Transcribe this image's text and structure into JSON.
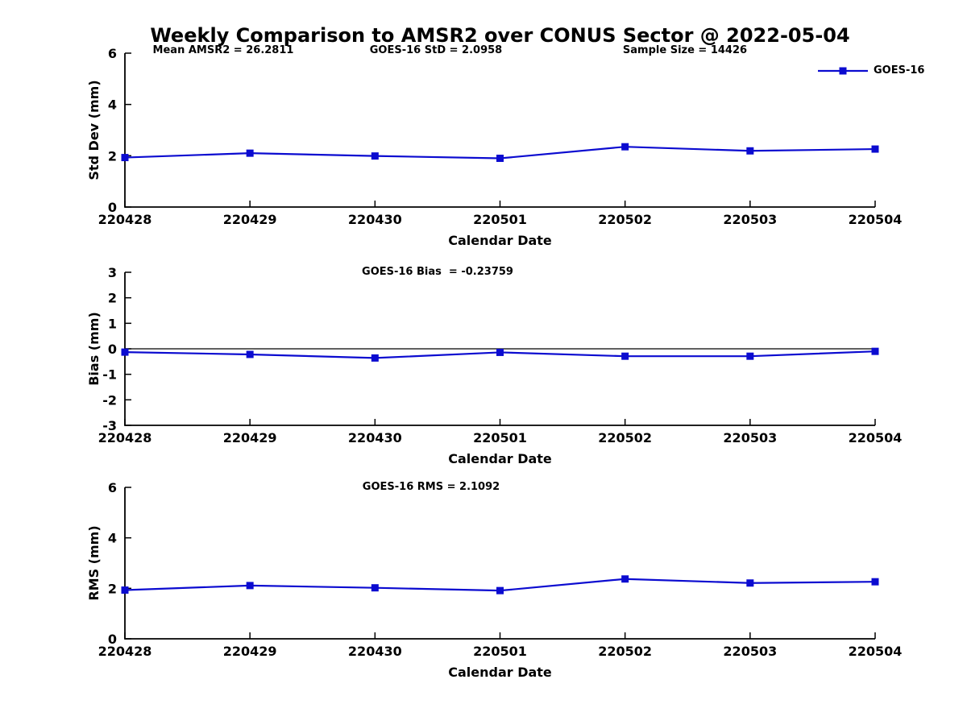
{
  "title": "Weekly Comparison to AMSR2 over CONUS Sector @ 2022-05-04",
  "legend": {
    "label": "GOES-16"
  },
  "colors": {
    "series": "#0b0bd0",
    "axis": "#000000",
    "text": "#000000",
    "background": "#ffffff"
  },
  "chart_data": [
    {
      "type": "line",
      "panel": "std-dev",
      "annotations": [
        "Mean AMSR2 = 26.2811",
        "GOES-16 StD = 2.0958",
        "Sample Size = 14426"
      ],
      "categories": [
        "220428",
        "220429",
        "220430",
        "220501",
        "220502",
        "220503",
        "220504"
      ],
      "series": [
        {
          "name": "GOES-16",
          "values": [
            1.93,
            2.1,
            1.99,
            1.9,
            2.35,
            2.19,
            2.26
          ]
        }
      ],
      "xlabel": "Calendar Date",
      "ylabel": "Std Dev (mm)",
      "ylim": [
        0,
        6
      ],
      "yticks": [
        0,
        2,
        4,
        6
      ],
      "zero_line": false,
      "legend_position": "top-right-inside",
      "grid": false,
      "marker": "square"
    },
    {
      "type": "line",
      "panel": "bias",
      "annotations": [
        "GOES-16 Bias  = -0.23759"
      ],
      "categories": [
        "220428",
        "220429",
        "220430",
        "220501",
        "220502",
        "220503",
        "220504"
      ],
      "series": [
        {
          "name": "GOES-16",
          "values": [
            -0.13,
            -0.22,
            -0.36,
            -0.14,
            -0.29,
            -0.29,
            -0.1
          ]
        }
      ],
      "xlabel": "Calendar Date",
      "ylabel": "Bias (mm)",
      "ylim": [
        -3,
        3
      ],
      "yticks": [
        3,
        2,
        1,
        0,
        -1,
        -2,
        -3
      ],
      "zero_line": true,
      "grid": false,
      "marker": "square"
    },
    {
      "type": "line",
      "panel": "rms",
      "annotations": [
        "GOES-16 RMS = 2.1092"
      ],
      "categories": [
        "220428",
        "220429",
        "220430",
        "220501",
        "220502",
        "220503",
        "220504"
      ],
      "series": [
        {
          "name": "GOES-16",
          "values": [
            1.93,
            2.11,
            2.02,
            1.91,
            2.37,
            2.21,
            2.26
          ]
        }
      ],
      "xlabel": "Calendar Date",
      "ylabel": "RMS (mm)",
      "ylim": [
        0,
        6
      ],
      "yticks": [
        0,
        2,
        4,
        6
      ],
      "zero_line": false,
      "grid": false,
      "marker": "square"
    }
  ]
}
